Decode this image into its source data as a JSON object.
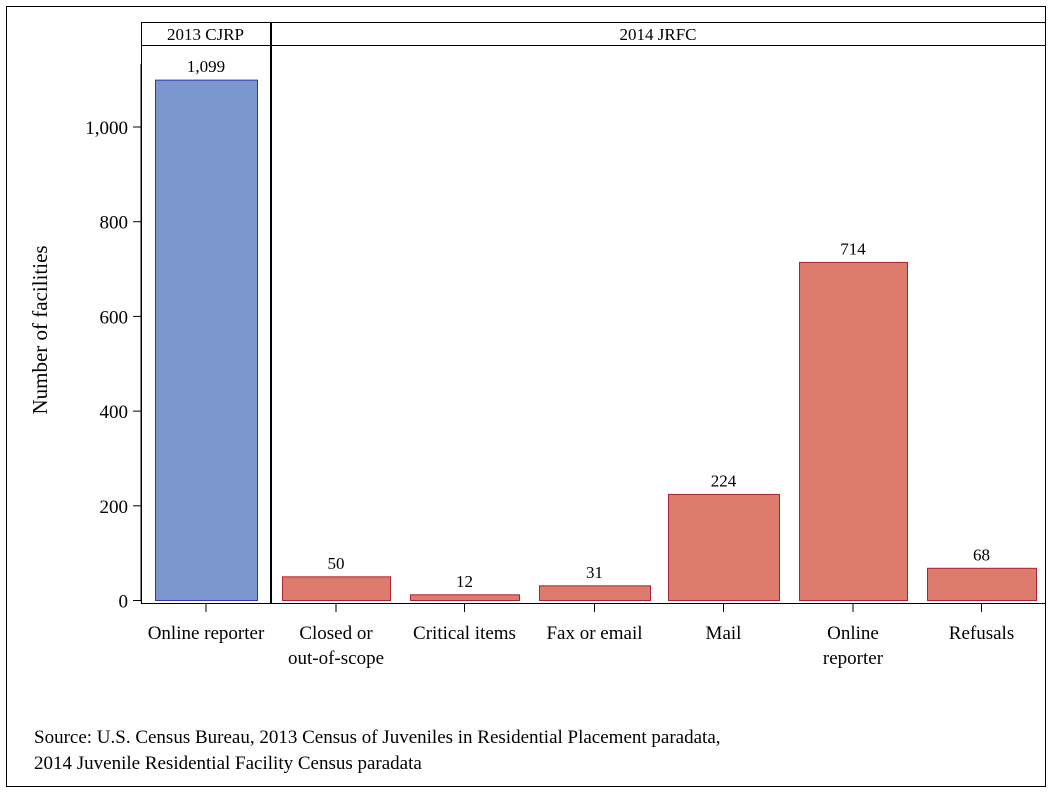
{
  "chart_data": {
    "type": "bar",
    "ylabel": "Number of facilities",
    "ylim": [
      0,
      1100
    ],
    "yticks": [
      0,
      200,
      400,
      600,
      800,
      1000
    ],
    "ytick_labels": [
      "0",
      "200",
      "400",
      "600",
      "800",
      "1,000"
    ],
    "grid": false,
    "panels": [
      {
        "label": "2013 CJRP",
        "color": "#7c97cd",
        "edge_color": "#3333aa",
        "categories": [
          [
            "Online reporter"
          ]
        ],
        "values": [
          1099
        ],
        "value_labels": [
          "1,099"
        ]
      },
      {
        "label": "2014 JRFC",
        "color": "#dd7b6d",
        "edge_color": "#aa2233",
        "categories": [
          [
            "Closed or",
            "out-of-scope"
          ],
          [
            "Critical items"
          ],
          [
            "Fax or email"
          ],
          [
            "Mail"
          ],
          [
            "Online",
            "reporter"
          ],
          [
            "Refusals"
          ]
        ],
        "values": [
          50,
          12,
          31,
          224,
          714,
          68
        ],
        "value_labels": [
          "50",
          "12",
          "31",
          "224",
          "714",
          "68"
        ]
      }
    ]
  },
  "footer": {
    "source_line1": "Source: U.S. Census Bureau, 2013 Census of Juveniles in Residential Placement paradata,",
    "source_line2": "2014 Juvenile Residential Facility Census paradata"
  }
}
